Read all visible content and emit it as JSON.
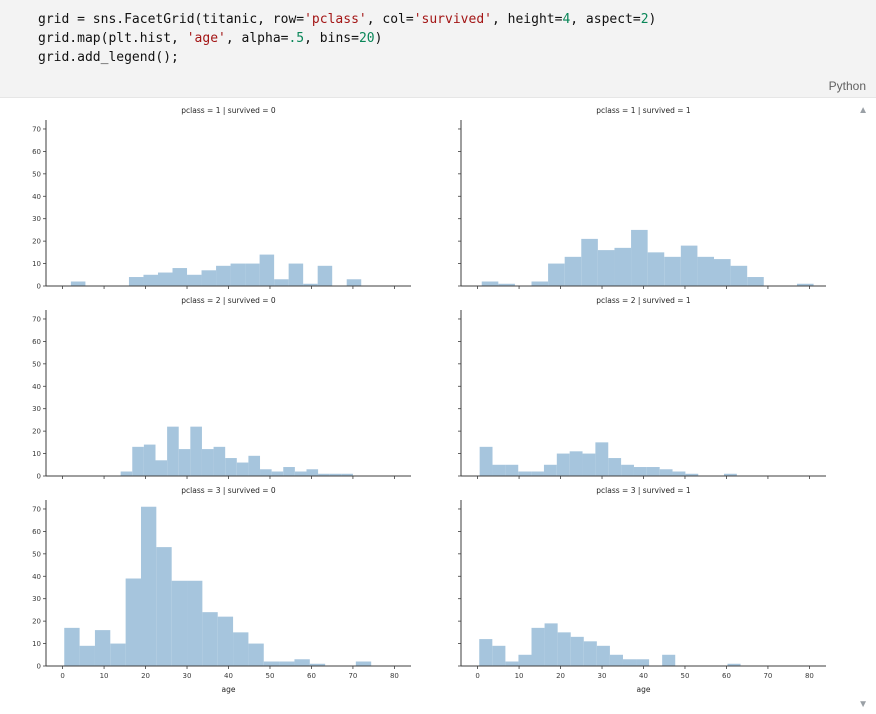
{
  "code_cell": {
    "language_label": "Python",
    "lines": [
      [
        {
          "t": "grid = sns.FacetGrid(titanic, row=",
          "c": "plain"
        },
        {
          "t": "'pclass'",
          "c": "string"
        },
        {
          "t": ", col=",
          "c": "plain"
        },
        {
          "t": "'survived'",
          "c": "string"
        },
        {
          "t": ", height=",
          "c": "plain"
        },
        {
          "t": "4",
          "c": "number"
        },
        {
          "t": ", aspect=",
          "c": "plain"
        },
        {
          "t": "2",
          "c": "number"
        },
        {
          "t": ")",
          "c": "plain"
        }
      ],
      [
        {
          "t": "grid.map(plt.hist, ",
          "c": "plain"
        },
        {
          "t": "'age'",
          "c": "string"
        },
        {
          "t": ", alpha=",
          "c": "plain"
        },
        {
          "t": ".5",
          "c": "number"
        },
        {
          "t": ", bins=",
          "c": "plain"
        },
        {
          "t": "20",
          "c": "number"
        },
        {
          "t": ")",
          "c": "plain"
        }
      ],
      [
        {
          "t": "grid.add_legend();",
          "c": "plain"
        }
      ]
    ]
  },
  "icons": {
    "scroll_up": "▲",
    "scroll_down": "▼"
  },
  "chart_data": {
    "type": "bar",
    "layout": "facet-grid 3 rows x 2 cols, shared axes, y labels on left column only, x labels on bottom row only",
    "xlabel": "age",
    "x_ticks": [
      0,
      10,
      20,
      30,
      40,
      50,
      60,
      70,
      80
    ],
    "y_ticks": [
      0,
      10,
      20,
      30,
      40,
      50,
      60,
      70
    ],
    "xlim": [
      -4,
      84
    ],
    "ylim": [
      0,
      74
    ],
    "bar_color": "#a6c5dd",
    "facets": [
      {
        "title": "pclass = 1 | survived = 0",
        "row": 0,
        "col": 0,
        "bin_start": 2,
        "bin_width": 3.5,
        "counts": [
          2,
          0,
          0,
          0,
          4,
          5,
          6,
          8,
          5,
          7,
          9,
          10,
          10,
          14,
          3,
          10,
          1,
          9,
          0,
          3
        ]
      },
      {
        "title": "pclass = 1 | survived = 1",
        "row": 0,
        "col": 1,
        "bin_start": 1,
        "bin_width": 4.0,
        "counts": [
          2,
          1,
          0,
          2,
          10,
          13,
          21,
          16,
          17,
          25,
          15,
          13,
          18,
          13,
          12,
          9,
          4,
          0,
          0,
          1
        ]
      },
      {
        "title": "pclass = 2 | survived = 0",
        "row": 1,
        "col": 0,
        "bin_start": 14,
        "bin_width": 2.8,
        "counts": [
          2,
          13,
          14,
          7,
          22,
          12,
          22,
          12,
          13,
          8,
          6,
          9,
          3,
          2,
          4,
          2,
          3,
          1,
          1,
          1
        ]
      },
      {
        "title": "pclass = 2 | survived = 1",
        "row": 1,
        "col": 1,
        "bin_start": 0.5,
        "bin_width": 3.1,
        "counts": [
          13,
          5,
          5,
          2,
          2,
          5,
          10,
          11,
          10,
          15,
          8,
          5,
          4,
          4,
          3,
          2,
          1,
          0,
          0,
          1
        ]
      },
      {
        "title": "pclass = 3 | survived = 0",
        "row": 2,
        "col": 0,
        "bin_start": 0.4,
        "bin_width": 3.7,
        "counts": [
          17,
          9,
          16,
          10,
          39,
          71,
          53,
          38,
          38,
          24,
          22,
          15,
          10,
          2,
          2,
          3,
          1,
          0,
          0,
          2
        ]
      },
      {
        "title": "pclass = 3 | survived = 1",
        "row": 2,
        "col": 1,
        "bin_start": 0.4,
        "bin_width": 3.15,
        "counts": [
          12,
          9,
          2,
          5,
          17,
          19,
          15,
          13,
          11,
          9,
          5,
          3,
          3,
          0,
          5,
          0,
          0,
          0,
          0,
          1
        ]
      }
    ]
  }
}
